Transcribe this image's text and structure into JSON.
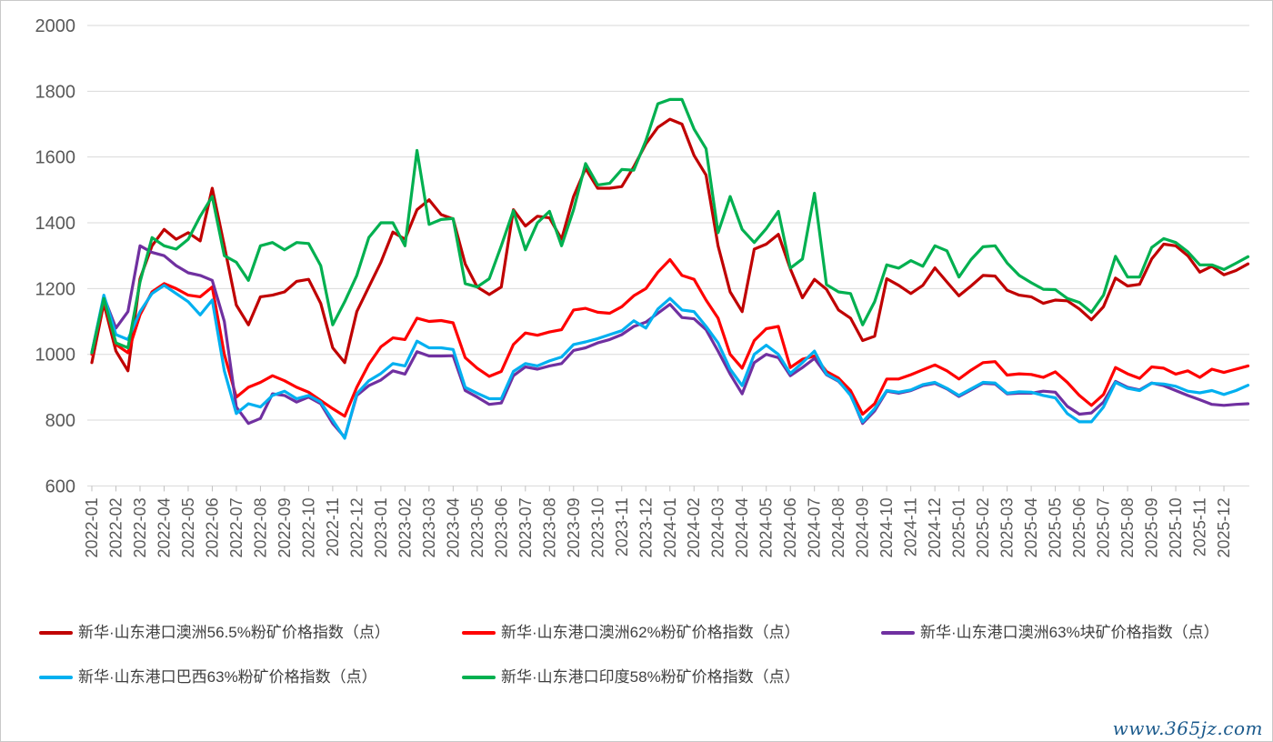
{
  "watermark": {
    "text": "www.365jz.com"
  },
  "chart_data": {
    "type": "line",
    "title": "",
    "xlabel": "",
    "ylabel": "",
    "ylim": [
      600,
      2000
    ],
    "y_ticks": [
      600,
      800,
      1000,
      1200,
      1400,
      1600,
      1800,
      2000
    ],
    "grid": "horizontal",
    "legend_position": "bottom",
    "x_tick_labels": [
      "2022-01",
      "2022-02",
      "2022-03",
      "2022-04",
      "2022-05",
      "2022-06",
      "2022-07",
      "2022-08",
      "2022-09",
      "2022-10",
      "2022-11",
      "2022-12",
      "2023-01",
      "2023-02",
      "2023-03",
      "2023-04",
      "2023-05",
      "2023-06",
      "2023-07",
      "2023-08",
      "2023-09",
      "2023-10",
      "2023-11",
      "2023-12",
      "2024-01",
      "2024-02",
      "2024-03",
      "2024-04",
      "2024-05",
      "2024-06",
      "2024-07",
      "2024-08",
      "2024-09",
      "2024-10",
      "2024-11",
      "2024-12",
      "2025-01",
      "2025-02",
      "2025-03",
      "2025-04",
      "2025-05",
      "2025-06",
      "2025-07",
      "2025-08",
      "2025-09",
      "2025-10",
      "2025-11",
      "2025-12"
    ],
    "sample_interval_months": 0.5,
    "series": [
      {
        "name": "新华·山东港口澳洲56.5%粉矿价格指数（点）",
        "color": "#C00000",
        "values": [
          975,
          1155,
          1010,
          950,
          1230,
          1330,
          1380,
          1350,
          1370,
          1345,
          1505,
          1330,
          1150,
          1090,
          1175,
          1180,
          1190,
          1222,
          1228,
          1155,
          1020,
          975,
          1130,
          1205,
          1280,
          1372,
          1350,
          1440,
          1470,
          1425,
          1412,
          1275,
          1205,
          1182,
          1205,
          1440,
          1390,
          1420,
          1415,
          1350,
          1480,
          1565,
          1505,
          1505,
          1510,
          1570,
          1640,
          1690,
          1715,
          1700,
          1605,
          1545,
          1330,
          1190,
          1130,
          1320,
          1335,
          1365,
          1260,
          1172,
          1228,
          1198,
          1135,
          1110,
          1042,
          1055,
          1230,
          1210,
          1185,
          1210,
          1263,
          1220,
          1178,
          1208,
          1240,
          1238,
          1195,
          1180,
          1175,
          1155,
          1165,
          1163,
          1138,
          1105,
          1145,
          1232,
          1208,
          1213,
          1290,
          1335,
          1330,
          1300,
          1250,
          1268,
          1242,
          1255,
          1275
        ]
      },
      {
        "name": "新华·山东港口澳洲62%粉矿价格指数（点）",
        "color": "#FF0000",
        "values": [
          1000,
          1165,
          1030,
          1005,
          1120,
          1190,
          1215,
          1200,
          1180,
          1175,
          1205,
          1000,
          870,
          900,
          915,
          935,
          920,
          900,
          885,
          860,
          835,
          812,
          900,
          970,
          1023,
          1050,
          1045,
          1110,
          1100,
          1103,
          1096,
          990,
          958,
          933,
          948,
          1030,
          1065,
          1058,
          1068,
          1075,
          1135,
          1140,
          1128,
          1125,
          1145,
          1178,
          1200,
          1250,
          1288,
          1240,
          1228,
          1165,
          1110,
          1000,
          958,
          1042,
          1078,
          1085,
          960,
          985,
          995,
          948,
          928,
          890,
          818,
          850,
          925,
          925,
          938,
          953,
          968,
          950,
          925,
          952,
          975,
          978,
          937,
          941,
          939,
          930,
          947,
          915,
          875,
          845,
          878,
          960,
          941,
          927,
          962,
          958,
          940,
          950,
          930,
          955,
          945,
          955,
          965
        ]
      },
      {
        "name": "新华·山东港口澳洲63%块矿价格指数（点）",
        "color": "#7030A0",
        "values": [
          1005,
          1175,
          1080,
          1130,
          1330,
          1310,
          1300,
          1270,
          1248,
          1240,
          1225,
          1100,
          840,
          790,
          805,
          880,
          875,
          855,
          870,
          850,
          790,
          748,
          875,
          905,
          922,
          950,
          940,
          1008,
          995,
          995,
          996,
          890,
          870,
          848,
          852,
          935,
          962,
          955,
          965,
          972,
          1012,
          1020,
          1035,
          1045,
          1060,
          1085,
          1098,
          1125,
          1152,
          1112,
          1108,
          1075,
          1010,
          940,
          880,
          975,
          1000,
          990,
          935,
          960,
          988,
          938,
          918,
          878,
          790,
          828,
          888,
          882,
          890,
          905,
          912,
          895,
          872,
          892,
          912,
          910,
          880,
          882,
          882,
          888,
          885,
          842,
          818,
          822,
          855,
          918,
          900,
          892,
          913,
          905,
          890,
          875,
          862,
          848,
          845,
          848,
          850
        ]
      },
      {
        "name": "新华·山东港口巴西63%粉矿价格指数（点）",
        "color": "#00B0F0",
        "values": [
          1005,
          1180,
          1060,
          1045,
          1130,
          1185,
          1210,
          1185,
          1160,
          1120,
          1165,
          950,
          820,
          850,
          840,
          875,
          888,
          865,
          875,
          855,
          800,
          745,
          880,
          920,
          942,
          972,
          965,
          1040,
          1020,
          1020,
          1015,
          900,
          882,
          865,
          865,
          948,
          972,
          965,
          980,
          992,
          1030,
          1038,
          1048,
          1060,
          1072,
          1102,
          1080,
          1138,
          1170,
          1135,
          1130,
          1085,
          1035,
          955,
          905,
          1000,
          1028,
          1000,
          942,
          975,
          1010,
          940,
          920,
          875,
          795,
          835,
          890,
          885,
          892,
          908,
          915,
          897,
          875,
          895,
          915,
          913,
          882,
          886,
          885,
          875,
          868,
          820,
          795,
          795,
          840,
          915,
          897,
          890,
          912,
          910,
          903,
          888,
          883,
          890,
          878,
          890,
          906
        ]
      },
      {
        "name": "新华·山东港口印度58%粉矿价格指数（点）",
        "color": "#00B050",
        "values": [
          1005,
          1170,
          1035,
          1020,
          1220,
          1355,
          1330,
          1320,
          1350,
          1420,
          1480,
          1300,
          1280,
          1225,
          1330,
          1340,
          1318,
          1340,
          1337,
          1270,
          1090,
          1160,
          1240,
          1355,
          1400,
          1400,
          1330,
          1620,
          1395,
          1410,
          1413,
          1215,
          1205,
          1230,
          1330,
          1437,
          1318,
          1400,
          1435,
          1330,
          1440,
          1580,
          1515,
          1520,
          1562,
          1560,
          1650,
          1762,
          1775,
          1775,
          1685,
          1625,
          1370,
          1480,
          1380,
          1340,
          1382,
          1435,
          1262,
          1290,
          1490,
          1212,
          1190,
          1185,
          1090,
          1160,
          1272,
          1262,
          1285,
          1268,
          1330,
          1315,
          1235,
          1288,
          1327,
          1330,
          1278,
          1240,
          1218,
          1198,
          1197,
          1170,
          1158,
          1128,
          1180,
          1298,
          1235,
          1235,
          1325,
          1352,
          1340,
          1312,
          1272,
          1272,
          1258,
          1277,
          1297
        ]
      }
    ]
  },
  "legend": {
    "row1": [
      "新华·山东港口澳洲56.5%粉矿价格指数（点）",
      "新华·山东港口澳洲62%粉矿价格指数（点）",
      "新华·山东港口澳洲63%块矿价格指数（点）"
    ],
    "row2": [
      "新华·山东港口巴西63%粉矿价格指数（点）",
      "新华·山东港口印度58%粉矿价格指数（点）"
    ]
  },
  "axis_style": {
    "label_color": "#595959",
    "grid_color": "#d9d9d9",
    "tick_color": "#bfbfbf"
  }
}
